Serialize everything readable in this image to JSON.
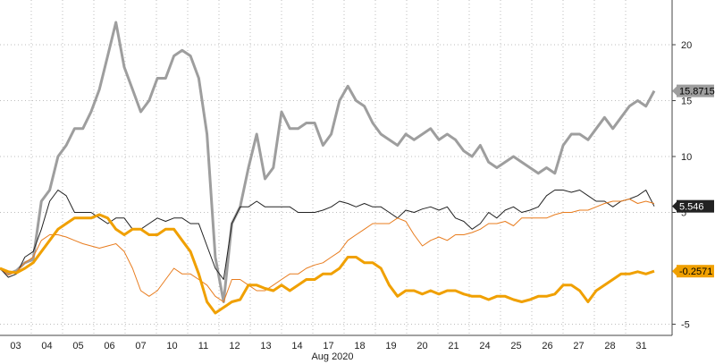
{
  "chart_data": {
    "type": "line",
    "xlabel": "Aug 2020",
    "x_ticks": [
      "03",
      "04",
      "05",
      "06",
      "07",
      "10",
      "11",
      "12",
      "13",
      "14",
      "17",
      "18",
      "19",
      "20",
      "21",
      "24",
      "25",
      "26",
      "27",
      "28",
      "31"
    ],
    "y_ticks": [
      "20",
      "15",
      "10",
      "5",
      "-5"
    ],
    "ylim": [
      -6,
      24
    ],
    "grid": "vertical dotted at each day, horizontal dotted at y ticks",
    "series": [
      {
        "color": "#9e9e9e",
        "last_label": "15.8715",
        "values": [
          0,
          -0.5,
          -0.2,
          0.5,
          0.8,
          6,
          7,
          10,
          11,
          12.5,
          12.5,
          14,
          16,
          19,
          22,
          18,
          16,
          14,
          15,
          17,
          17,
          19,
          19.5,
          19,
          17,
          12,
          1,
          -3,
          4,
          5.5,
          9,
          12,
          8,
          9,
          14,
          12.5,
          12.5,
          13,
          13,
          11,
          12,
          15,
          16.3,
          15,
          14.5,
          13,
          12,
          11.5,
          11,
          12,
          11.5,
          12,
          12.5,
          11.5,
          12,
          11.5,
          10.5,
          10,
          11,
          9.5,
          9,
          9.5,
          10,
          9.5,
          9,
          8.5,
          9,
          8.5,
          11,
          12,
          12,
          11.5,
          12.5,
          13.5,
          12.5,
          13.5,
          14.5,
          15,
          14.5,
          15.8715
        ]
      },
      {
        "color": "#222222",
        "last_label": "5.546",
        "values": [
          0,
          -0.8,
          -0.5,
          1,
          1.5,
          3.5,
          6,
          7,
          6.5,
          5,
          5,
          5,
          4.5,
          4,
          4.5,
          4.5,
          3.5,
          3.5,
          4,
          4.5,
          4.2,
          4.5,
          4.5,
          4,
          4,
          2,
          0,
          -1,
          4,
          5.5,
          5.5,
          6,
          5.5,
          5.5,
          5.5,
          5.5,
          5,
          5,
          5,
          5.2,
          5.5,
          6,
          5.8,
          5.5,
          5.8,
          5.5,
          5.5,
          5,
          4.5,
          5.2,
          5,
          5.3,
          5.5,
          5.2,
          5.5,
          4.5,
          4.2,
          3.5,
          4,
          5,
          4.5,
          5.2,
          5.5,
          5,
          5.2,
          5.5,
          6.5,
          7,
          7,
          6.8,
          7,
          6.5,
          6,
          6,
          5.5,
          6,
          6.2,
          6.5,
          7,
          5.546
        ]
      },
      {
        "color": "#e87c1e",
        "last_label": "",
        "values": [
          0,
          -0.6,
          -0.3,
          0.5,
          1,
          2.5,
          3,
          3,
          2.8,
          2.5,
          2.2,
          2,
          1.8,
          2,
          2.2,
          1.5,
          0,
          -2,
          -2.5,
          -2,
          -1,
          0,
          -0.5,
          -0.5,
          -1,
          -1.5,
          -2.5,
          -3,
          -1,
          -1,
          -1.5,
          -2,
          -2,
          -1.5,
          -1,
          -0.5,
          -0.5,
          0,
          0.3,
          0.5,
          1,
          1.5,
          2.5,
          3,
          3.5,
          4,
          4,
          4,
          4.5,
          4.2,
          3,
          2,
          2.5,
          2.8,
          2.5,
          3,
          3,
          3.2,
          3.5,
          4,
          4,
          4.2,
          3.8,
          4.5,
          4.5,
          4.5,
          4.5,
          4.8,
          5,
          5,
          5.2,
          5.2,
          5.5,
          5.8,
          6,
          6,
          6.2,
          5.8,
          6,
          5.8
        ]
      },
      {
        "color": "#f0a000",
        "last_label": "-0.2571",
        "values": [
          0,
          -0.3,
          -0.4,
          0,
          0.5,
          1.5,
          2.5,
          3.5,
          4,
          4.5,
          4.5,
          4.5,
          4.8,
          4.5,
          3.5,
          3,
          3.5,
          3.5,
          3,
          3,
          3.5,
          3.5,
          2.5,
          1.5,
          -0.5,
          -3,
          -4,
          -3.5,
          -3,
          -2.8,
          -1.5,
          -1.5,
          -1.8,
          -2,
          -1.5,
          -2,
          -1.5,
          -1,
          -1,
          -0.5,
          -0.5,
          0,
          1,
          1,
          0.5,
          0.5,
          0,
          -1.5,
          -2.5,
          -2,
          -2,
          -2.3,
          -2,
          -2.3,
          -2,
          -2,
          -2.3,
          -2.5,
          -2.5,
          -2.8,
          -2.5,
          -2.5,
          -2.8,
          -3,
          -2.8,
          -2.5,
          -2.5,
          -2.3,
          -1.5,
          -1.5,
          -2,
          -3,
          -2,
          -1.5,
          -1,
          -0.5,
          -0.5,
          -0.3,
          -0.5,
          -0.2571
        ]
      }
    ]
  }
}
